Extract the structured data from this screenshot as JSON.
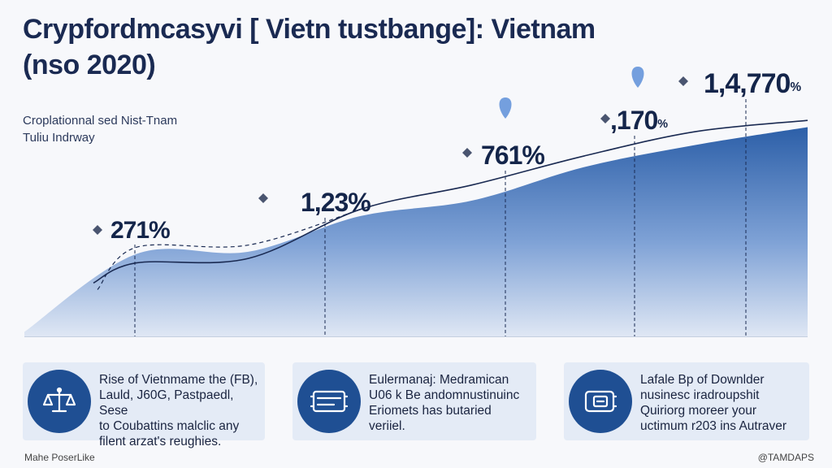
{
  "header": {
    "title_line1": "Crypfordmcasyvi [ Vietn tustbange]: Vietnam",
    "title_line2": "(nso 2020)",
    "subtitle_line1": "Croplationnal sed Nist-Tnam",
    "subtitle_line2": "Tuliu Indrway"
  },
  "chart_data": {
    "type": "area",
    "title": "Crypfordmcasyvi [ Vietn tustbange]: Vietnam (nso 2020)",
    "xlabel": "",
    "ylabel": "",
    "grid": false,
    "series": [
      {
        "values": [
          27,
          37,
          38,
          54,
          61,
          76,
          86,
          94
        ]
      },
      {
        "values": [
          31,
          33,
          35,
          57,
          68,
          81,
          92,
          97
        ]
      }
    ],
    "data_labels": [
      {
        "text": "271%",
        "point": 0
      },
      {
        "text": "1,23%",
        "point": 2
      },
      {
        "text": "761%",
        "point": 4
      },
      {
        "text": ",170",
        "suffix": "%",
        "point": 5
      },
      {
        "text": "1,4,770",
        "suffix": "%",
        "point": 6
      }
    ],
    "colors": {
      "area_top": "#2c5fa8",
      "area_bottom": "#d3deef",
      "line": "#1a2a52",
      "pin": "#5d8fd8"
    }
  },
  "cards": [
    {
      "icon": "scale-icon",
      "lines": [
        "Rise of Vietnmame the (FB),",
        "Lauld, J60G, Pastpaedl, Sese",
        "to Coubattins malclic any",
        "filent arzat's reughies."
      ]
    },
    {
      "icon": "device-icon",
      "lines": [
        "Eulermanaj: Medramican",
        "U06 k Be andomnustinuinc",
        "Eriomets has butaried",
        "veriiel."
      ]
    },
    {
      "icon": "wallet-icon",
      "lines": [
        "Lafale Bp of Downlder",
        "nusinesc iradroupshit",
        "Quiriorg moreer your",
        "uctimum r203 ins Autraver"
      ]
    }
  ],
  "footer": {
    "left": "Mahe PoserLike",
    "right": "@TAMDAPS"
  }
}
